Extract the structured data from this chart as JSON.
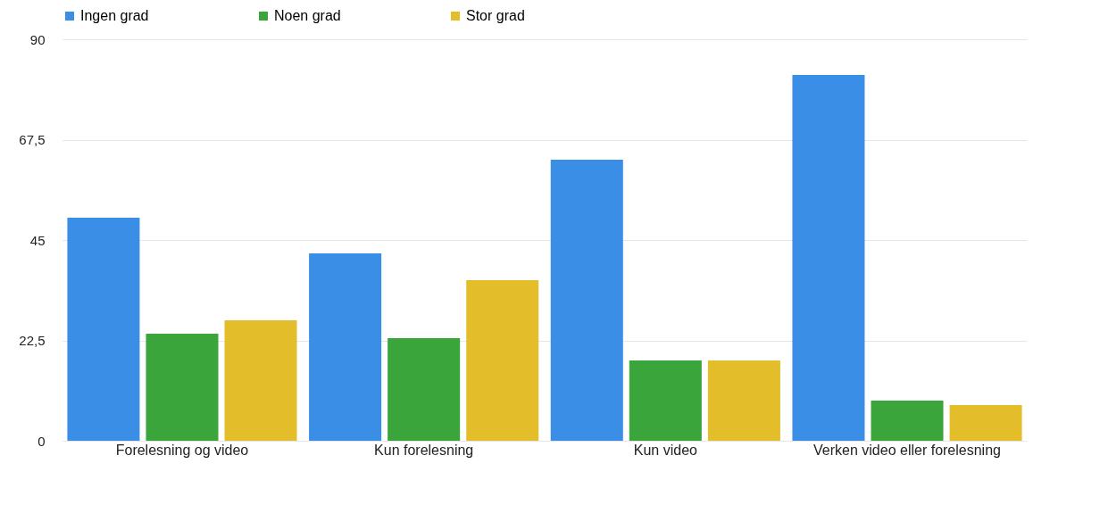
{
  "chart_data": {
    "type": "bar",
    "categories": [
      "Forelesning og video",
      "Kun forelesning",
      "Kun video",
      "Verken video eller forelesning"
    ],
    "series": [
      {
        "name": "Ingen grad",
        "color": "#3a8ee6",
        "values": [
          50,
          42,
          63,
          82
        ]
      },
      {
        "name": "Noen grad",
        "color": "#3aa53a",
        "values": [
          24,
          23,
          18,
          9
        ]
      },
      {
        "name": "Stor grad",
        "color": "#e3be2a",
        "values": [
          27,
          36,
          18,
          8
        ]
      }
    ],
    "ylim": [
      0,
      90
    ],
    "yticks": [
      0,
      {
        "value": 22.5,
        "label": "22,5"
      },
      45,
      {
        "value": 67.5,
        "label": "67,5"
      },
      90
    ],
    "grid": "y",
    "legend": "top"
  }
}
